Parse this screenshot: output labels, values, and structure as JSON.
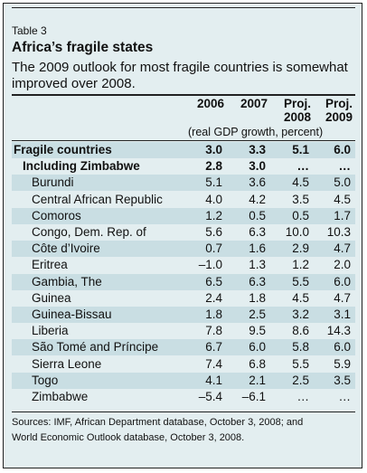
{
  "header": {
    "table_label": "Table 3",
    "title": "Africa’s fragile states",
    "subtitle": "The 2009 outlook for most fragile countries is somewhat improved over 2008."
  },
  "columns": [
    {
      "top": "",
      "bottom": "2006"
    },
    {
      "top": "",
      "bottom": "2007"
    },
    {
      "top": "Proj.",
      "bottom": "2008"
    },
    {
      "top": "Proj.",
      "bottom": "2009"
    }
  ],
  "units": "(real GDP growth, percent)",
  "rows": [
    {
      "name": "Fragile countries",
      "values": [
        "3.0",
        "3.3",
        "5.1",
        "6.0"
      ],
      "bold": true,
      "indent": 0
    },
    {
      "name": "Including Zimbabwe",
      "values": [
        "2.8",
        "3.0",
        "…",
        "…"
      ],
      "bold": true,
      "indent": 1
    },
    {
      "name": "Burundi",
      "values": [
        "5.1",
        "3.6",
        "4.5",
        "5.0"
      ],
      "bold": false,
      "indent": 2
    },
    {
      "name": "Central African Republic",
      "values": [
        "4.0",
        "4.2",
        "3.5",
        "4.5"
      ],
      "bold": false,
      "indent": 2
    },
    {
      "name": "Comoros",
      "values": [
        "1.2",
        "0.5",
        "0.5",
        "1.7"
      ],
      "bold": false,
      "indent": 2
    },
    {
      "name": "Congo, Dem. Rep. of",
      "values": [
        "5.6",
        "6.3",
        "10.0",
        "10.3"
      ],
      "bold": false,
      "indent": 2
    },
    {
      "name": "Côte d’Ivoire",
      "values": [
        "0.7",
        "1.6",
        "2.9",
        "4.7"
      ],
      "bold": false,
      "indent": 2
    },
    {
      "name": "Eritrea",
      "values": [
        "–1.0",
        "1.3",
        "1.2",
        "2.0"
      ],
      "bold": false,
      "indent": 2
    },
    {
      "name": "Gambia, The",
      "values": [
        "6.5",
        "6.3",
        "5.5",
        "6.0"
      ],
      "bold": false,
      "indent": 2
    },
    {
      "name": "Guinea",
      "values": [
        "2.4",
        "1.8",
        "4.5",
        "4.7"
      ],
      "bold": false,
      "indent": 2
    },
    {
      "name": "Guinea-Bissau",
      "values": [
        "1.8",
        "2.5",
        "3.2",
        "3.1"
      ],
      "bold": false,
      "indent": 2
    },
    {
      "name": "Liberia",
      "values": [
        "7.8",
        "9.5",
        "8.6",
        "14.3"
      ],
      "bold": false,
      "indent": 2
    },
    {
      "name": "São Tomé and Príncipe",
      "values": [
        "6.7",
        "6.0",
        "5.8",
        "6.0"
      ],
      "bold": false,
      "indent": 2
    },
    {
      "name": "Sierra Leone",
      "values": [
        "7.4",
        "6.8",
        "5.5",
        "5.9"
      ],
      "bold": false,
      "indent": 2
    },
    {
      "name": "Togo",
      "values": [
        "4.1",
        "2.1",
        "2.5",
        "3.5"
      ],
      "bold": false,
      "indent": 2
    },
    {
      "name": "Zimbabwe",
      "values": [
        "–5.4",
        "–6.1",
        "…",
        "…"
      ],
      "bold": false,
      "indent": 2
    }
  ],
  "source_lines": [
    "Sources: IMF, African Department database, October 3, 2008; and",
    "World Economic Outlook database, October 3, 2008."
  ],
  "colors": {
    "background": "#e3eef0",
    "stripe": "#c9dee3",
    "border": "#222222"
  }
}
